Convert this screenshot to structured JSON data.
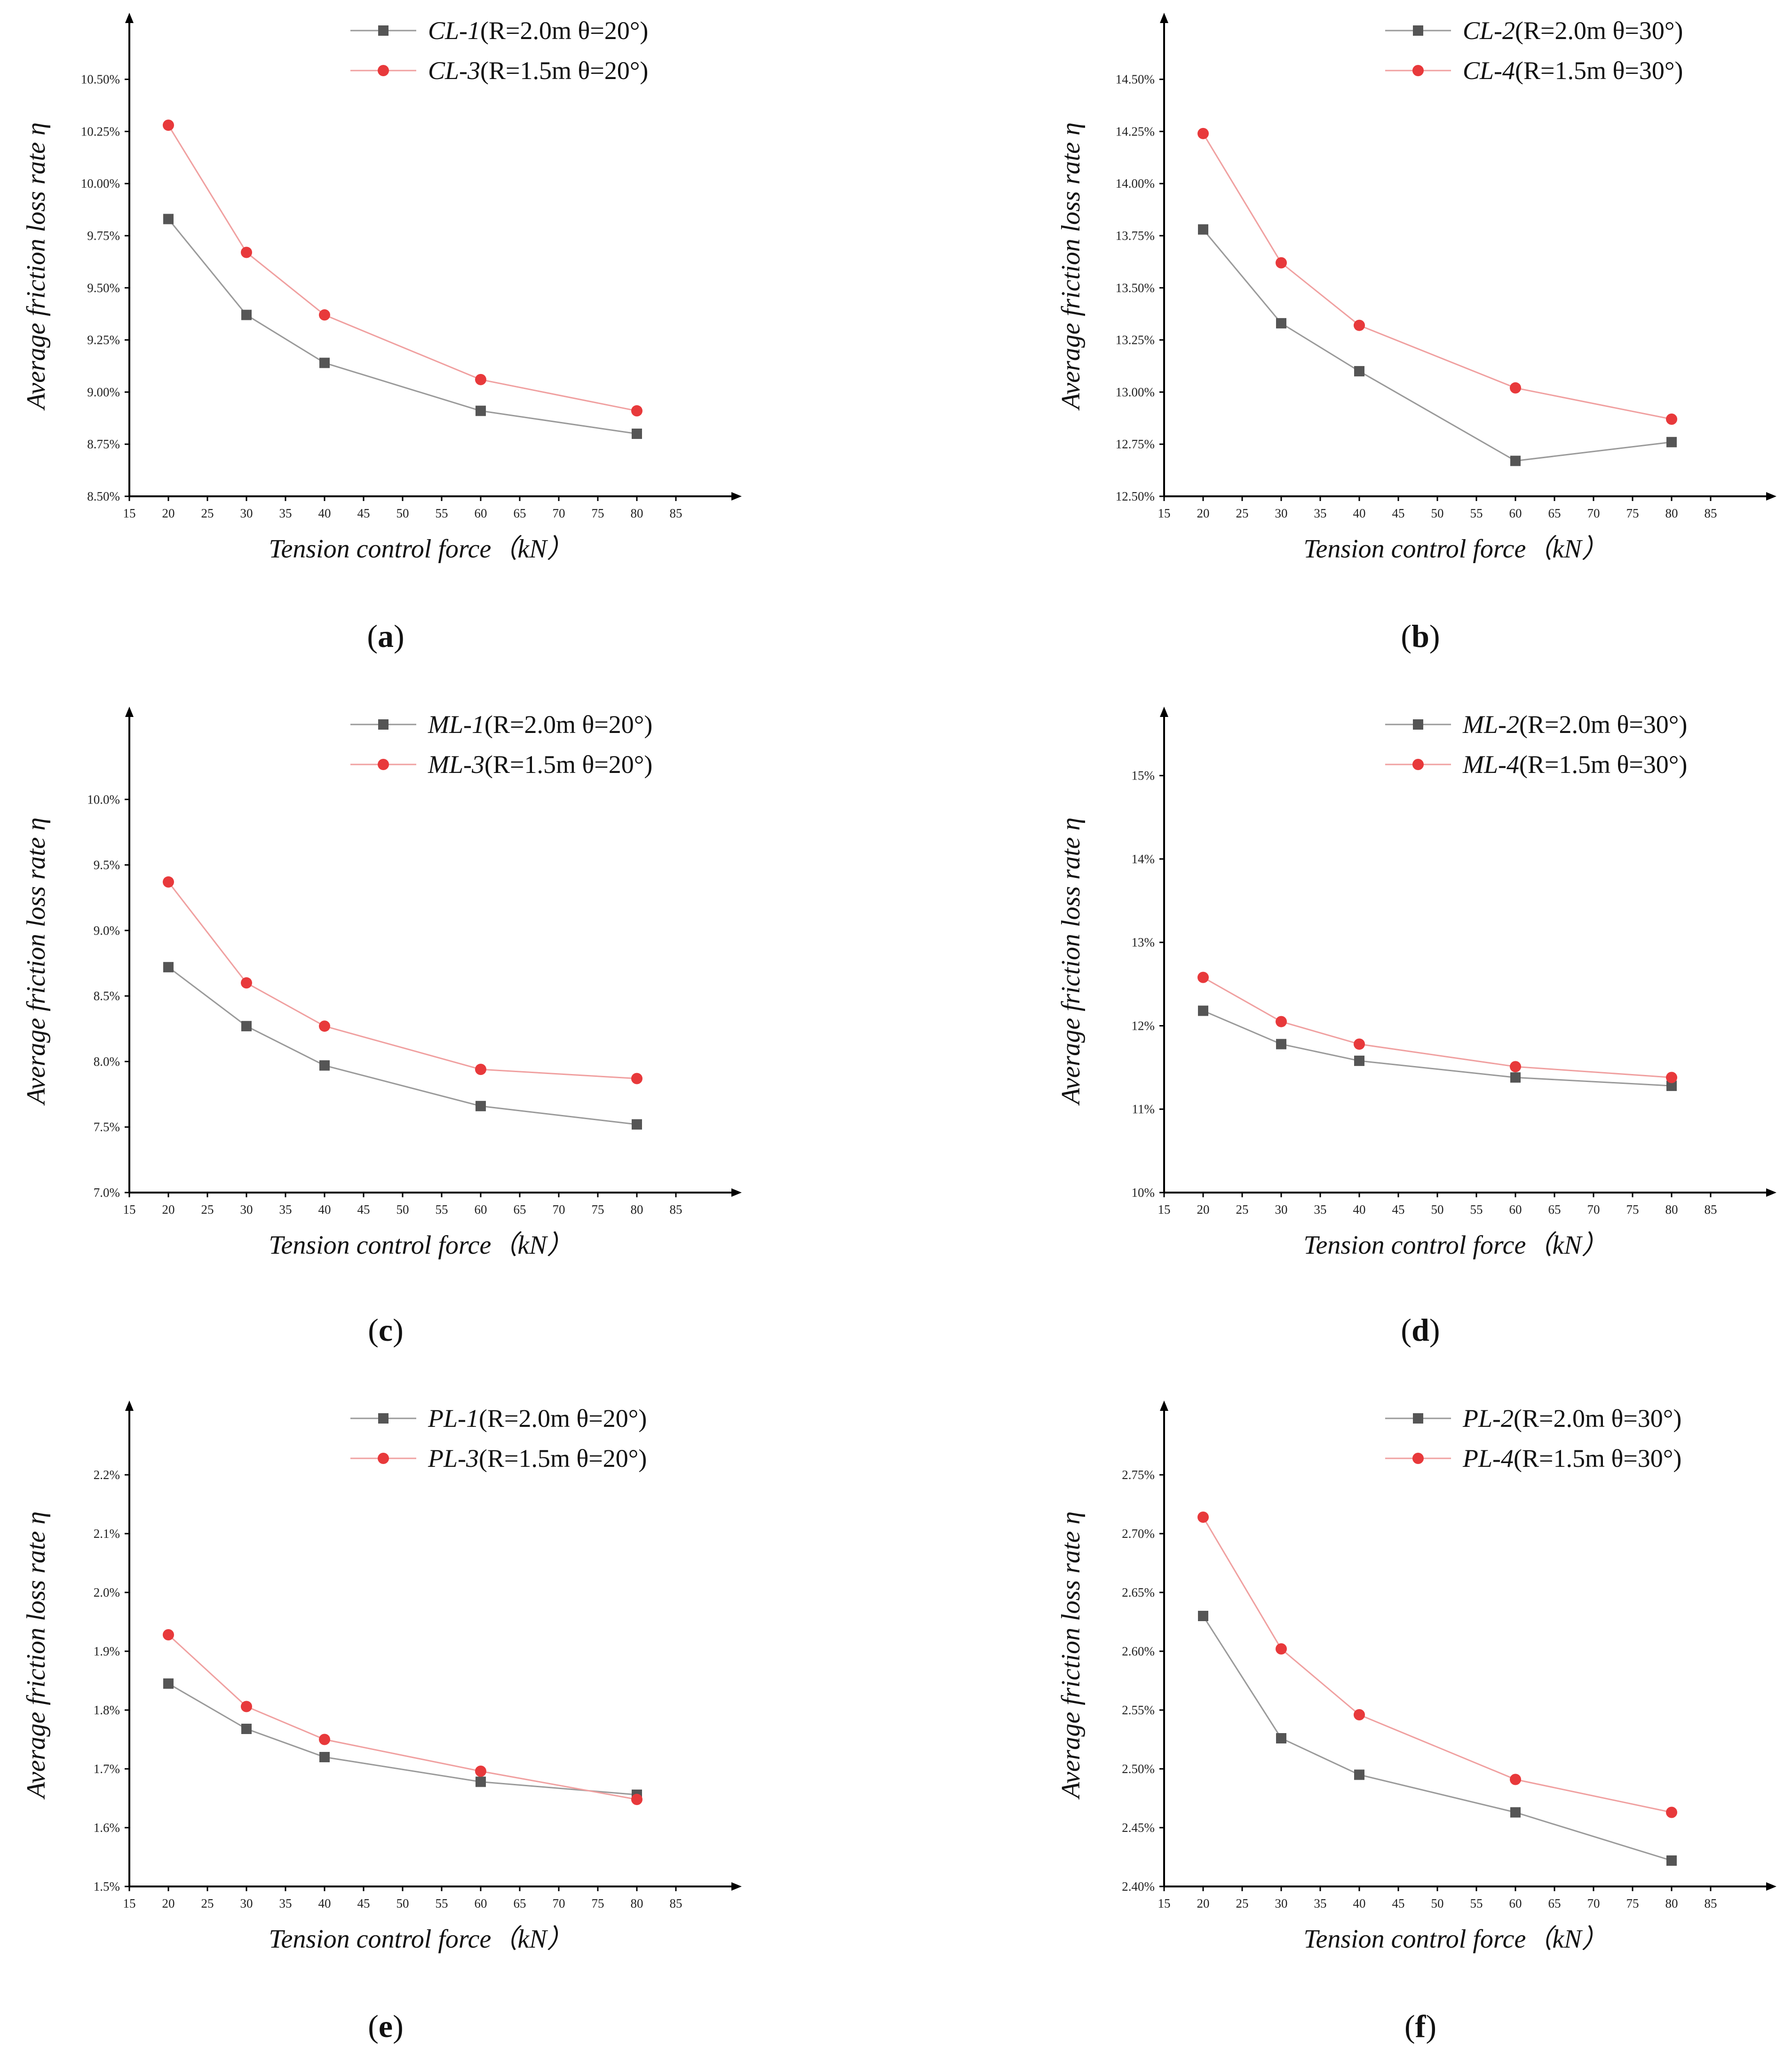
{
  "figure": {
    "colors": {
      "series1": "#555555",
      "series2": "#e8393b",
      "line1": "#9a9a9a",
      "line2": "#f0a0a0",
      "axis": "#000000"
    }
  },
  "chart_data": [
    {
      "type": "line",
      "caption_letter": "a",
      "xlabel": "Tension control force（kN）",
      "ylabel": "Average friction loss rate η",
      "xlim": [
        15,
        93
      ],
      "xticks": [
        15,
        20,
        25,
        30,
        35,
        40,
        45,
        50,
        55,
        60,
        65,
        70,
        75,
        80,
        85
      ],
      "ylim": [
        8.5,
        10.7
      ],
      "yticks": [
        "8.50%",
        "8.75%",
        "9.00%",
        "9.25%",
        "9.50%",
        "9.75%",
        "10.00%",
        "10.25%",
        "10.50%"
      ],
      "ytick_values": [
        8.5,
        8.75,
        9.0,
        9.25,
        9.5,
        9.75,
        10.0,
        10.25,
        10.5
      ],
      "x": [
        20,
        30,
        40,
        60,
        80
      ],
      "series": [
        {
          "name_prefix": "CL-1",
          "name_paren": "R=2.0m θ=20°",
          "values": [
            9.83,
            9.37,
            9.14,
            8.91,
            8.8
          ]
        },
        {
          "name_prefix": "CL-3",
          "name_paren": "R=1.5m θ=20°",
          "values": [
            10.28,
            9.67,
            9.37,
            9.06,
            8.91
          ]
        }
      ]
    },
    {
      "type": "line",
      "caption_letter": "b",
      "xlabel": "Tension control force（kN）",
      "ylabel": "Average friction loss rate η",
      "xlim": [
        15,
        93
      ],
      "xticks": [
        15,
        20,
        25,
        30,
        35,
        40,
        45,
        50,
        55,
        60,
        65,
        70,
        75,
        80,
        85
      ],
      "ylim": [
        12.5,
        14.7
      ],
      "yticks": [
        "12.50%",
        "12.75%",
        "13.00%",
        "13.25%",
        "13.50%",
        "13.75%",
        "14.00%",
        "14.25%",
        "14.50%"
      ],
      "ytick_values": [
        12.5,
        12.75,
        13.0,
        13.25,
        13.5,
        13.75,
        14.0,
        14.25,
        14.5
      ],
      "x": [
        20,
        30,
        40,
        60,
        80
      ],
      "series": [
        {
          "name_prefix": "CL-2",
          "name_paren": "R=2.0m θ=30°",
          "values": [
            13.78,
            13.33,
            13.1,
            12.67,
            12.76
          ]
        },
        {
          "name_prefix": "CL-4",
          "name_paren": "R=1.5m θ=30°",
          "values": [
            14.24,
            13.62,
            13.32,
            13.02,
            12.87
          ]
        }
      ]
    },
    {
      "type": "line",
      "caption_letter": "c",
      "xlabel": "Tension control force（kN）",
      "ylabel": "Average friction loss rate η",
      "xlim": [
        15,
        93
      ],
      "xticks": [
        15,
        20,
        25,
        30,
        35,
        40,
        45,
        50,
        55,
        60,
        65,
        70,
        75,
        80,
        85
      ],
      "ylim": [
        7.0,
        10.5
      ],
      "yticks": [
        "7.0%",
        "7.5%",
        "8.0%",
        "8.5%",
        "9.0%",
        "9.5%",
        "10.0%"
      ],
      "ytick_values": [
        7.0,
        7.5,
        8.0,
        8.5,
        9.0,
        9.5,
        10.0
      ],
      "x": [
        20,
        30,
        40,
        60,
        80
      ],
      "series": [
        {
          "name_prefix": "ML-1",
          "name_paren": "R=2.0m θ=20°",
          "values": [
            8.72,
            8.27,
            7.97,
            7.66,
            7.52
          ]
        },
        {
          "name_prefix": "ML-3",
          "name_paren": "R=1.5m θ=20°",
          "values": [
            9.37,
            8.6,
            8.27,
            7.94,
            7.87
          ]
        }
      ]
    },
    {
      "type": "line",
      "caption_letter": "d",
      "xlabel": "Tension control force（kN）",
      "ylabel": "Average friction loss rate η",
      "xlim": [
        15,
        93
      ],
      "xticks": [
        15,
        20,
        25,
        30,
        35,
        40,
        45,
        50,
        55,
        60,
        65,
        70,
        75,
        80,
        85
      ],
      "ylim": [
        10,
        15.5
      ],
      "yticks": [
        "10%",
        "11%",
        "12%",
        "13%",
        "14%",
        "15%"
      ],
      "ytick_values": [
        10,
        11,
        12,
        13,
        14,
        15
      ],
      "x": [
        20,
        30,
        40,
        60,
        80
      ],
      "series": [
        {
          "name_prefix": "ML-2",
          "name_paren": "R=2.0m θ=30°",
          "values": [
            12.18,
            11.78,
            11.58,
            11.38,
            11.28
          ]
        },
        {
          "name_prefix": "ML-4",
          "name_paren": "R=1.5m θ=30°",
          "values": [
            12.58,
            12.05,
            11.78,
            11.51,
            11.38
          ]
        }
      ]
    },
    {
      "type": "line",
      "caption_letter": "e",
      "xlabel": "Tension control force（kN）",
      "ylabel": "Average friction loss rate η",
      "xlim": [
        15,
        93
      ],
      "xticks": [
        15,
        20,
        25,
        30,
        35,
        40,
        45,
        50,
        55,
        60,
        65,
        70,
        75,
        80,
        85
      ],
      "ylim": [
        1.5,
        2.28
      ],
      "yticks": [
        "1.5%",
        "1.6%",
        "1.7%",
        "1.8%",
        "1.9%",
        "2.0%",
        "2.1%",
        "2.2%"
      ],
      "ytick_values": [
        1.5,
        1.6,
        1.7,
        1.8,
        1.9,
        2.0,
        2.1,
        2.2
      ],
      "x": [
        20,
        30,
        40,
        60,
        80
      ],
      "series": [
        {
          "name_prefix": "PL-1",
          "name_paren": "R=2.0m θ=20°",
          "values": [
            1.845,
            1.768,
            1.72,
            1.678,
            1.656
          ]
        },
        {
          "name_prefix": "PL-3",
          "name_paren": "R=1.5m θ=20°",
          "values": [
            1.928,
            1.806,
            1.75,
            1.696,
            1.648
          ]
        }
      ]
    },
    {
      "type": "line",
      "caption_letter": "f",
      "xlabel": "Tension control force（kN）",
      "ylabel": "Average friction loss rate η",
      "xlim": [
        15,
        93
      ],
      "xticks": [
        15,
        20,
        25,
        30,
        35,
        40,
        45,
        50,
        55,
        60,
        65,
        70,
        75,
        80,
        85
      ],
      "ylim": [
        2.4,
        2.79
      ],
      "yticks": [
        "2.40%",
        "2.45%",
        "2.50%",
        "2.55%",
        "2.60%",
        "2.65%",
        "2.70%",
        "2.75%"
      ],
      "ytick_values": [
        2.4,
        2.45,
        2.5,
        2.55,
        2.6,
        2.65,
        2.7,
        2.75
      ],
      "x": [
        20,
        30,
        40,
        60,
        80
      ],
      "series": [
        {
          "name_prefix": "PL-2",
          "name_paren": "R=2.0m θ=30°",
          "values": [
            2.63,
            2.526,
            2.495,
            2.463,
            2.422
          ]
        },
        {
          "name_prefix": "PL-4",
          "name_paren": "R=1.5m θ=30°",
          "values": [
            2.714,
            2.602,
            2.546,
            2.491,
            2.463
          ]
        }
      ]
    }
  ]
}
